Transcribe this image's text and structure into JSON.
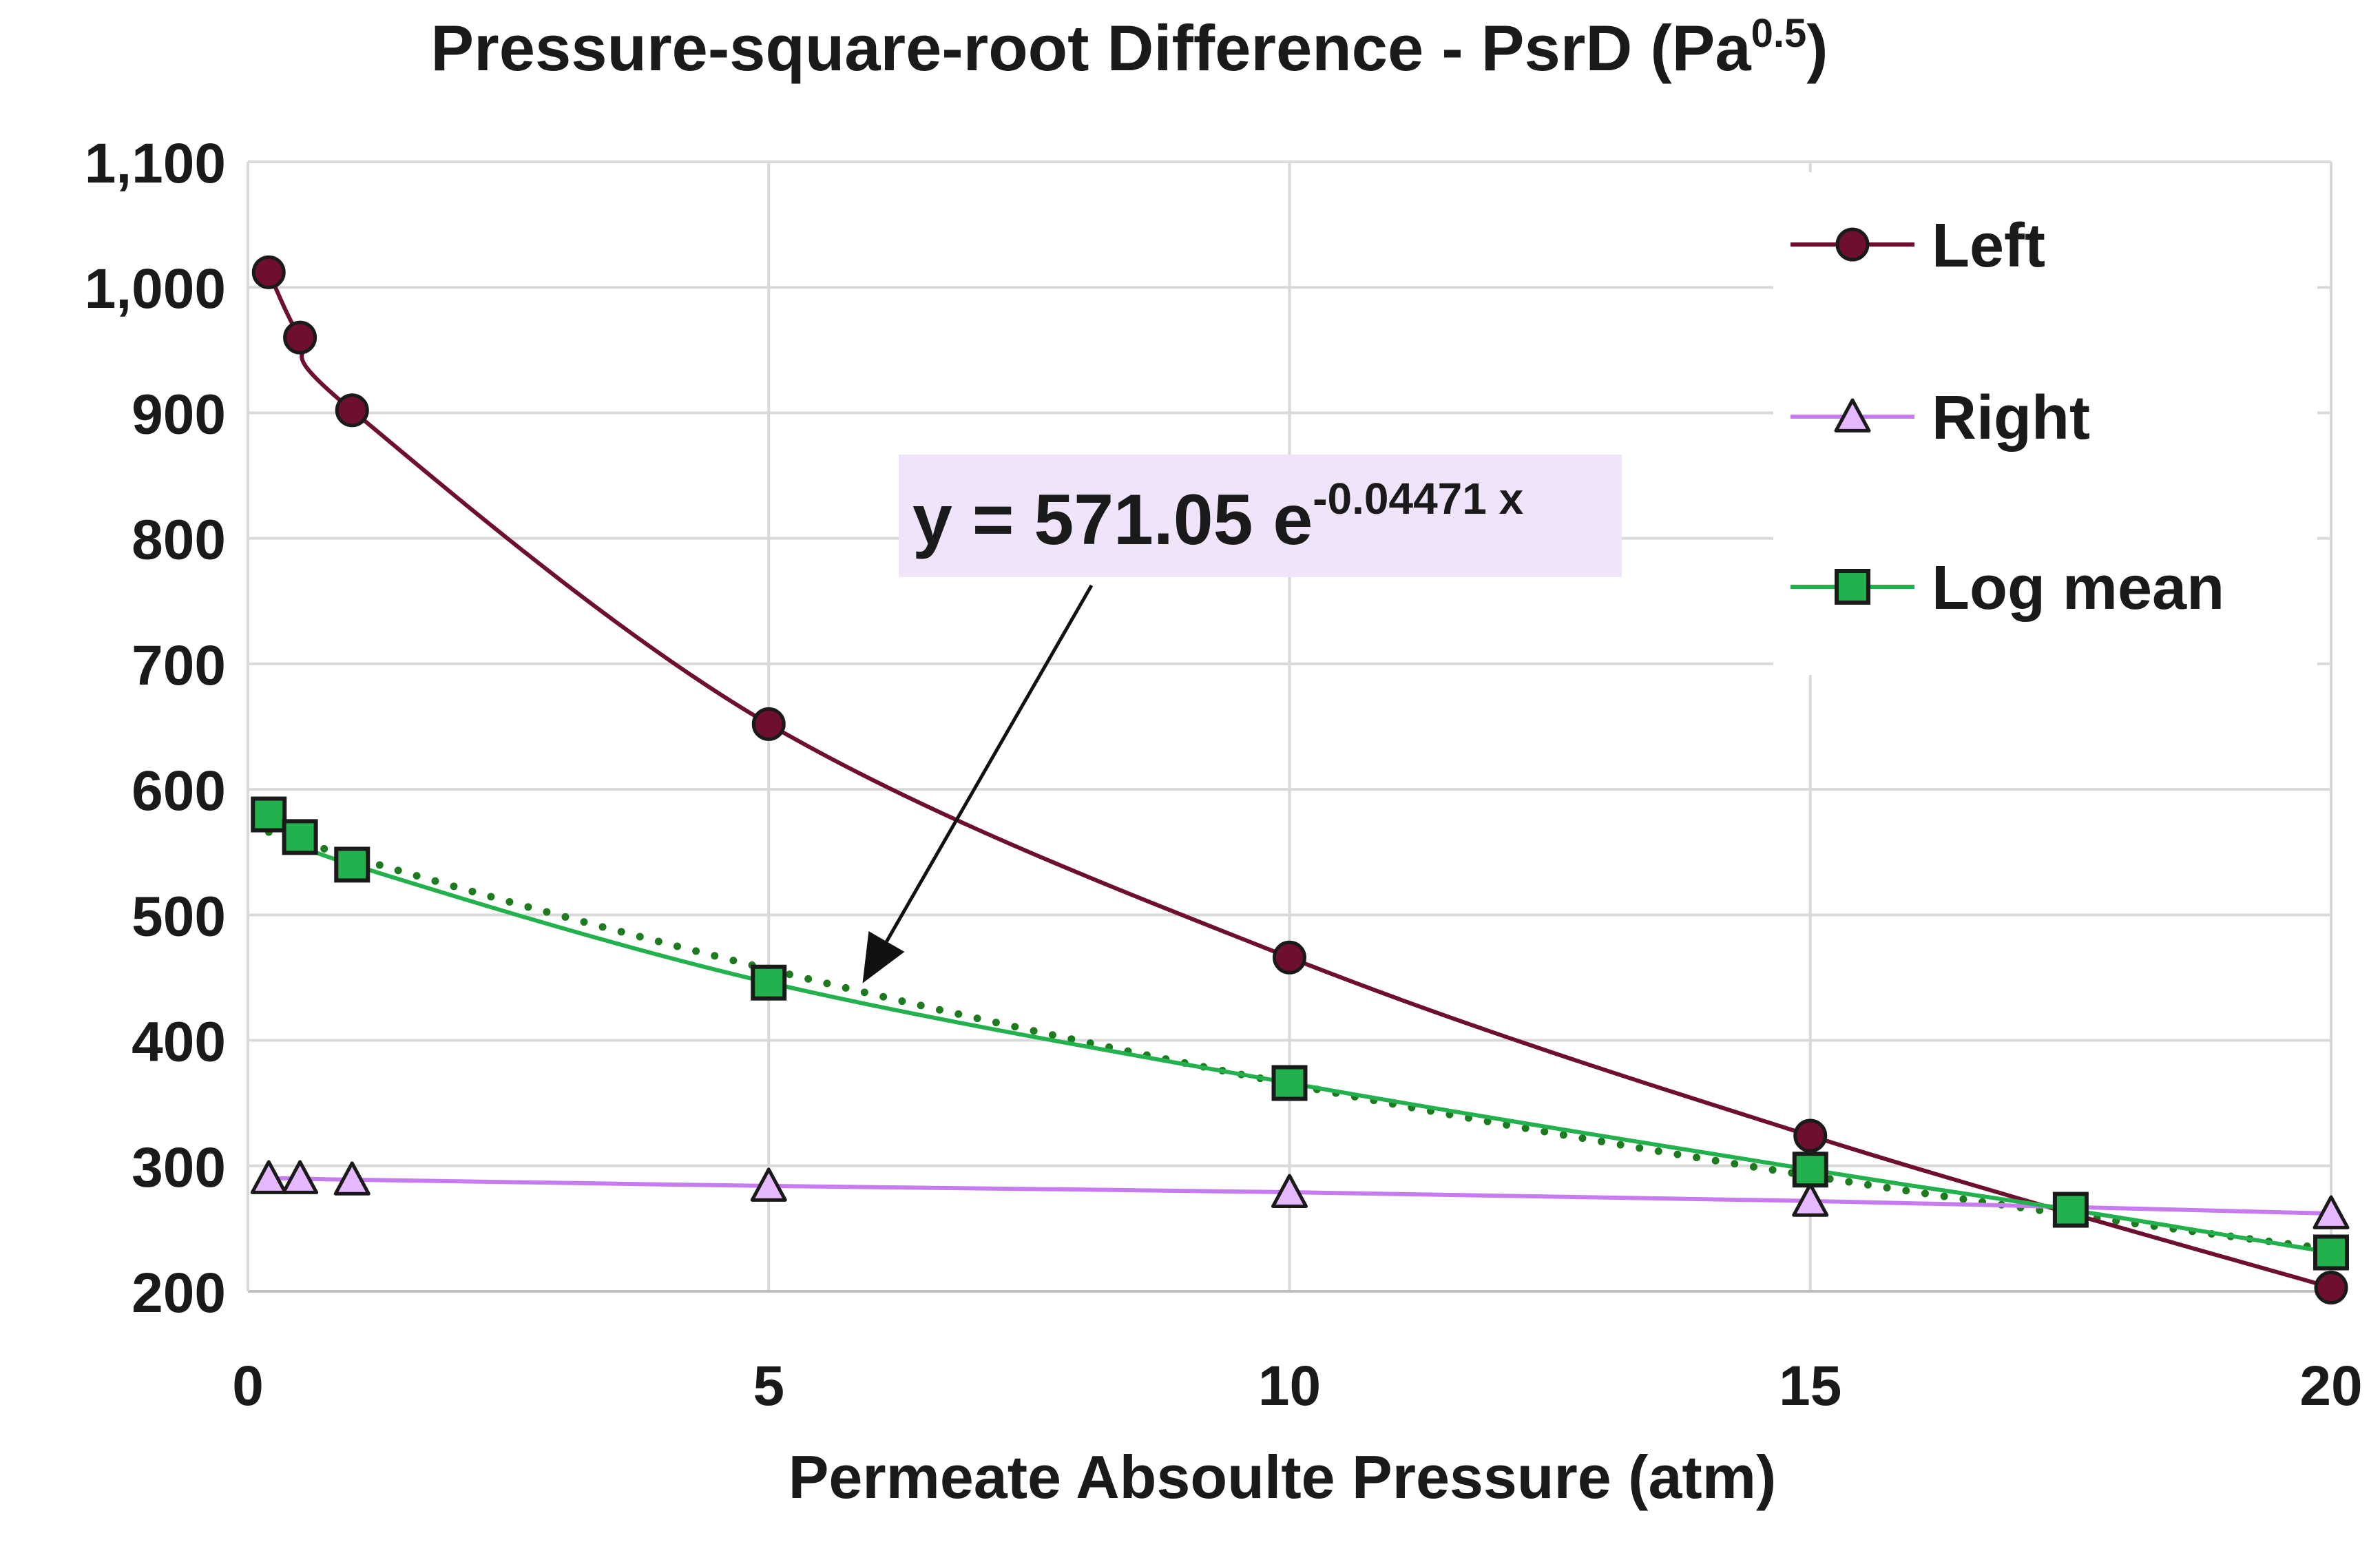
{
  "chart_data": {
    "type": "line",
    "title": "Pressure-square-root Difference - PsrD (Pa",
    "title_sup": "0.5",
    "title_end": ")",
    "xlabel": "Permeate Absoulte Pressure (atm)",
    "ylabel": "",
    "xlim": [
      0,
      20
    ],
    "ylim": [
      200,
      1100
    ],
    "xticks": [
      0,
      5,
      10,
      15,
      20
    ],
    "xtick_labels": [
      "0",
      "5",
      "10",
      "15",
      "20"
    ],
    "yticks": [
      200,
      300,
      400,
      500,
      600,
      700,
      800,
      900,
      1000,
      1100
    ],
    "ytick_labels": [
      "200",
      "300",
      "400",
      "500",
      "600",
      "700",
      "800",
      "900",
      "1,000",
      "1,100"
    ],
    "grid": true,
    "legend_position": "top-right",
    "series": [
      {
        "name": "Left",
        "marker": "circle",
        "color": "#6e0f2f",
        "marker_fill": "#6e0f2f",
        "points": [
          [
            0.2,
            1012
          ],
          [
            0.5,
            960
          ],
          [
            1,
            902
          ],
          [
            5,
            652
          ],
          [
            10,
            466
          ],
          [
            15,
            324
          ],
          [
            20,
            203
          ]
        ]
      },
      {
        "name": "Right",
        "marker": "triangle",
        "color": "#c77bf0",
        "marker_fill": "#e6b8ff",
        "points": [
          [
            0.2,
            290
          ],
          [
            0.5,
            290
          ],
          [
            1,
            289
          ],
          [
            5,
            284
          ],
          [
            10,
            279
          ],
          [
            15,
            272
          ],
          [
            20,
            262
          ]
        ]
      },
      {
        "name": "Log mean",
        "marker": "square",
        "color": "#22b14c",
        "marker_fill": "#22b14c",
        "points": [
          [
            0.2,
            580
          ],
          [
            0.5,
            562
          ],
          [
            1,
            540
          ],
          [
            5,
            446
          ],
          [
            10,
            366
          ],
          [
            15,
            297
          ],
          [
            17.5,
            265
          ],
          [
            20,
            231
          ]
        ]
      }
    ],
    "trendline": {
      "type": "exponential",
      "a": 571.05,
      "b": -0.04471,
      "color": "#1e7a1e",
      "style": "dotted"
    },
    "annotation": {
      "text_main": "y = 571.05 e",
      "text_sup": "-0.04471 x",
      "box_color": "#f0e4fa",
      "arrow_tip_xy": [
        6,
        440
      ]
    }
  }
}
